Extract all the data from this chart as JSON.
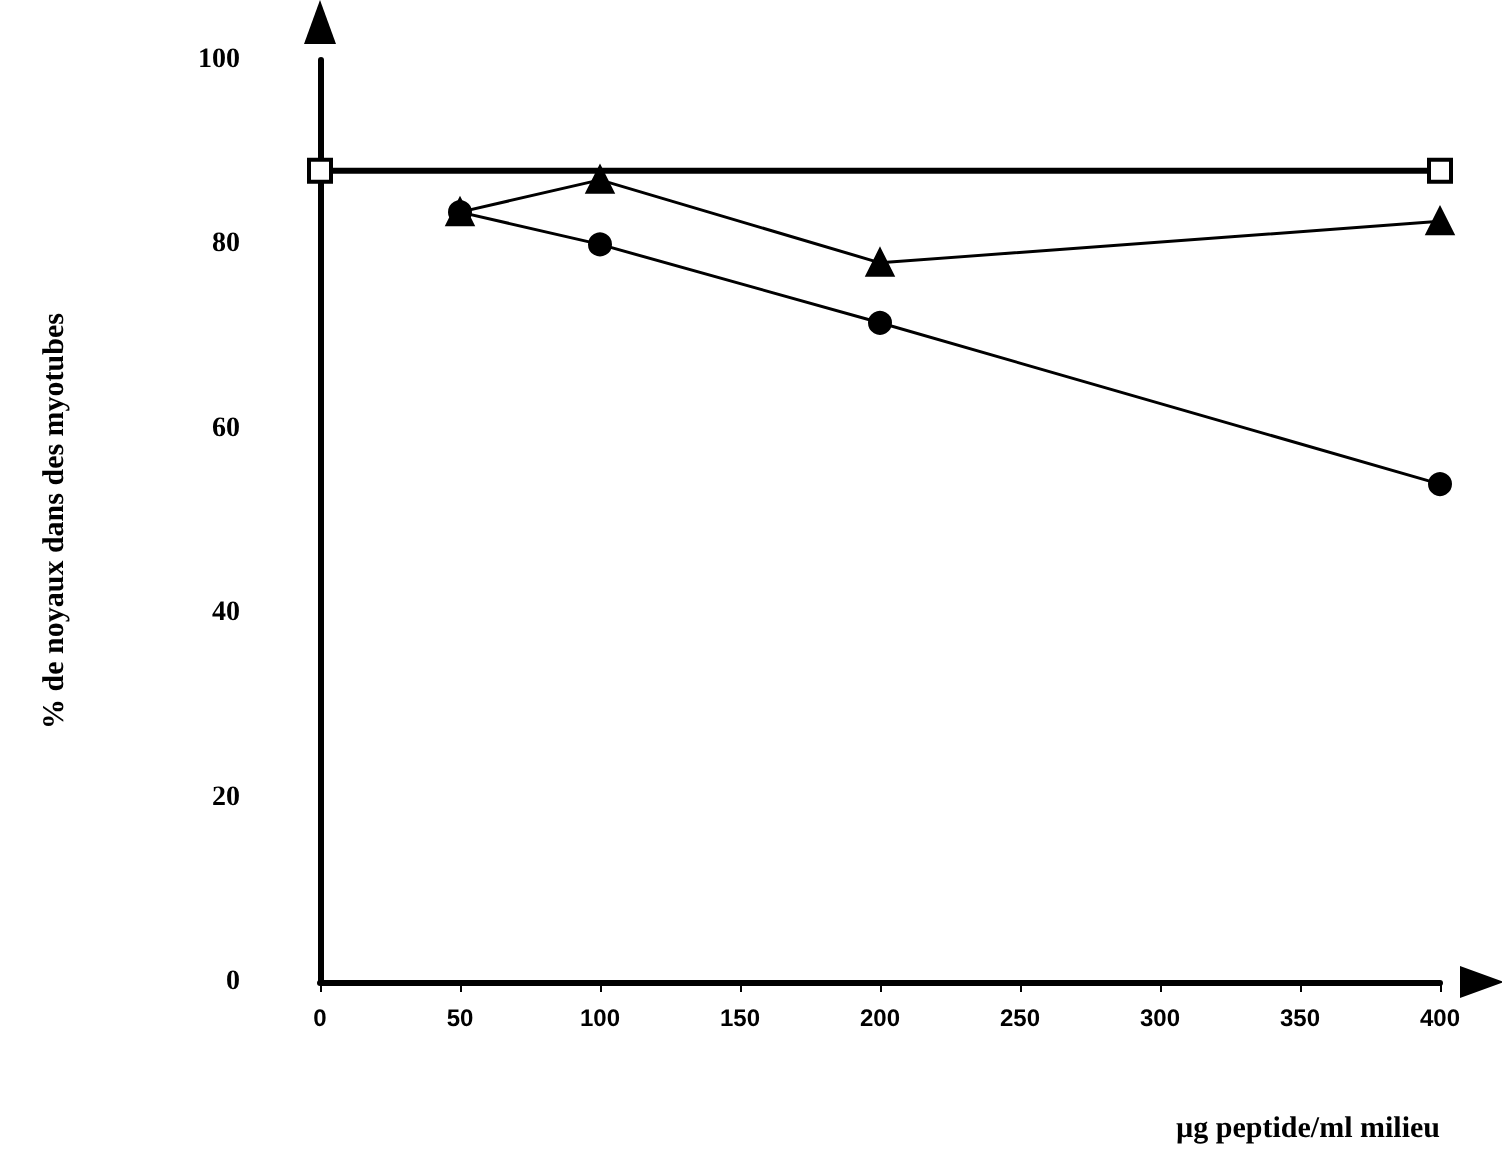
{
  "chart_data": {
    "type": "line",
    "xlabel": "µg peptide/ml milieu",
    "ylabel": "% de noyaux dans des myotubes",
    "xlim": [
      0,
      400
    ],
    "xticks": [
      0,
      50,
      100,
      150,
      200,
      250,
      300,
      350,
      400
    ],
    "ylim": [
      0,
      100
    ],
    "yticks": [
      0,
      20,
      40,
      60,
      80,
      100
    ],
    "grid": false,
    "series": [
      {
        "color": "#000000",
        "marker": "square",
        "x": [
          0,
          400
        ],
        "values": [
          88,
          88
        ]
      },
      {
        "color": "#000000",
        "marker": "triangle",
        "x": [
          50,
          100,
          200,
          400
        ],
        "values": [
          83.5,
          87,
          78,
          82.5
        ]
      },
      {
        "color": "#000000",
        "marker": "circle",
        "x": [
          50,
          100,
          200,
          400
        ],
        "values": [
          83.5,
          80,
          71.5,
          54
        ]
      }
    ]
  }
}
